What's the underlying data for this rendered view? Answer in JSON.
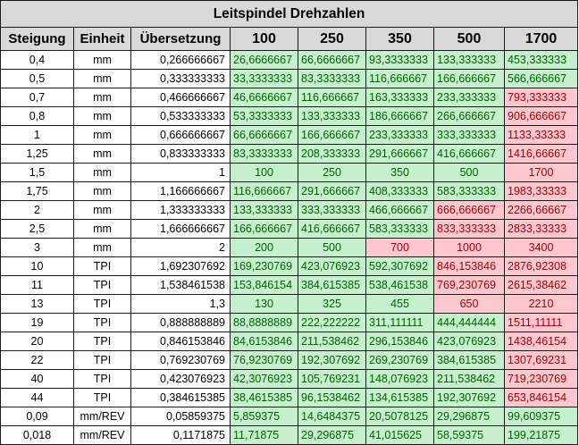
{
  "title": "Leitspindel Drehzahlen",
  "headers": {
    "steigung": "Steigung",
    "einheit": "Einheit",
    "uebersetzung": "Übersetzung",
    "speeds": [
      "100",
      "250",
      "350",
      "500",
      "1700"
    ]
  },
  "colors": {
    "ok_fill": "#c6efce",
    "ok_text": "#006100",
    "bad_fill": "#ffc7ce",
    "bad_text": "#9c0006",
    "header_fill": "#d9d9d9"
  },
  "rows": [
    {
      "steigung": "0,4",
      "einheit": "mm",
      "uebersetzung": "0,266666667",
      "values": [
        "26,6666667",
        "66,6666667",
        "93,3333333",
        "133,333333",
        "453,333333"
      ],
      "status": [
        "ok",
        "ok",
        "ok",
        "ok",
        "ok"
      ]
    },
    {
      "steigung": "0,5",
      "einheit": "mm",
      "uebersetzung": "0,333333333",
      "values": [
        "33,3333333",
        "83,3333333",
        "116,666667",
        "166,666667",
        "566,666667"
      ],
      "status": [
        "ok",
        "ok",
        "ok",
        "ok",
        "ok"
      ]
    },
    {
      "steigung": "0,7",
      "einheit": "mm",
      "uebersetzung": "0,466666667",
      "values": [
        "46,6666667",
        "116,666667",
        "163,333333",
        "233,333333",
        "793,333333"
      ],
      "status": [
        "ok",
        "ok",
        "ok",
        "ok",
        "bad"
      ]
    },
    {
      "steigung": "0,8",
      "einheit": "mm",
      "uebersetzung": "0,533333333",
      "values": [
        "53,3333333",
        "133,333333",
        "186,666667",
        "266,666667",
        "906,666667"
      ],
      "status": [
        "ok",
        "ok",
        "ok",
        "ok",
        "bad"
      ]
    },
    {
      "steigung": "1",
      "einheit": "mm",
      "uebersetzung": "0,666666667",
      "values": [
        "66,6666667",
        "166,666667",
        "233,333333",
        "333,333333",
        "1133,33333"
      ],
      "status": [
        "ok",
        "ok",
        "ok",
        "ok",
        "bad"
      ]
    },
    {
      "steigung": "1,25",
      "einheit": "mm",
      "uebersetzung": "0,833333333",
      "values": [
        "83,3333333",
        "208,333333",
        "291,666667",
        "416,666667",
        "1416,66667"
      ],
      "status": [
        "ok",
        "ok",
        "ok",
        "ok",
        "bad"
      ]
    },
    {
      "steigung": "1,5",
      "einheit": "mm",
      "uebersetzung": "1",
      "values": [
        "100",
        "250",
        "350",
        "500",
        "1700"
      ],
      "status": [
        "ok",
        "ok",
        "ok",
        "ok",
        "bad"
      ]
    },
    {
      "steigung": "1,75",
      "einheit": "mm",
      "uebersetzung": "1,166666667",
      "values": [
        "116,666667",
        "291,666667",
        "408,333333",
        "583,333333",
        "1983,33333"
      ],
      "status": [
        "ok",
        "ok",
        "ok",
        "ok",
        "bad"
      ]
    },
    {
      "steigung": "2",
      "einheit": "mm",
      "uebersetzung": "1,333333333",
      "values": [
        "133,333333",
        "333,333333",
        "466,666667",
        "666,666667",
        "2266,66667"
      ],
      "status": [
        "ok",
        "ok",
        "ok",
        "bad",
        "bad"
      ]
    },
    {
      "steigung": "2,5",
      "einheit": "mm",
      "uebersetzung": "1,666666667",
      "values": [
        "166,666667",
        "416,666667",
        "583,333333",
        "833,333333",
        "2833,33333"
      ],
      "status": [
        "ok",
        "ok",
        "ok",
        "bad",
        "bad"
      ]
    },
    {
      "steigung": "3",
      "einheit": "mm",
      "uebersetzung": "2",
      "values": [
        "200",
        "500",
        "700",
        "1000",
        "3400"
      ],
      "status": [
        "ok",
        "ok",
        "bad",
        "bad",
        "bad"
      ]
    },
    {
      "steigung": "10",
      "einheit": "TPI",
      "uebersetzung": "1,692307692",
      "values": [
        "169,230769",
        "423,076923",
        "592,307692",
        "846,153846",
        "2876,92308"
      ],
      "status": [
        "ok",
        "ok",
        "ok",
        "bad",
        "bad"
      ]
    },
    {
      "steigung": "11",
      "einheit": "TPI",
      "uebersetzung": "1,538461538",
      "values": [
        "153,846154",
        "384,615385",
        "538,461538",
        "769,230769",
        "2615,38462"
      ],
      "status": [
        "ok",
        "ok",
        "ok",
        "bad",
        "bad"
      ]
    },
    {
      "steigung": "13",
      "einheit": "TPI",
      "uebersetzung": "1,3",
      "values": [
        "130",
        "325",
        "455",
        "650",
        "2210"
      ],
      "status": [
        "ok",
        "ok",
        "ok",
        "bad",
        "bad"
      ]
    },
    {
      "steigung": "19",
      "einheit": "TPI",
      "uebersetzung": "0,888888889",
      "values": [
        "88,8888889",
        "222,222222",
        "311,111111",
        "444,444444",
        "1511,11111"
      ],
      "status": [
        "ok",
        "ok",
        "ok",
        "ok",
        "bad"
      ]
    },
    {
      "steigung": "20",
      "einheit": "TPI",
      "uebersetzung": "0,846153846",
      "values": [
        "84,6153846",
        "211,538462",
        "296,153846",
        "423,076923",
        "1438,46154"
      ],
      "status": [
        "ok",
        "ok",
        "ok",
        "ok",
        "bad"
      ]
    },
    {
      "steigung": "22",
      "einheit": "TPI",
      "uebersetzung": "0,769230769",
      "values": [
        "76,9230769",
        "192,307692",
        "269,230769",
        "384,615385",
        "1307,69231"
      ],
      "status": [
        "ok",
        "ok",
        "ok",
        "ok",
        "bad"
      ]
    },
    {
      "steigung": "40",
      "einheit": "TPI",
      "uebersetzung": "0,423076923",
      "values": [
        "42,3076923",
        "105,769231",
        "148,076923",
        "211,538462",
        "719,230769"
      ],
      "status": [
        "ok",
        "ok",
        "ok",
        "ok",
        "bad"
      ]
    },
    {
      "steigung": "44",
      "einheit": "TPI",
      "uebersetzung": "0,384615385",
      "values": [
        "38,4615385",
        "96,1538462",
        "134,615385",
        "192,307692",
        "653,846154"
      ],
      "status": [
        "ok",
        "ok",
        "ok",
        "ok",
        "bad"
      ]
    },
    {
      "steigung": "0,09",
      "einheit": "mm/REV",
      "uebersetzung": "0,05859375",
      "values": [
        "5,859375",
        "14,6484375",
        "20,5078125",
        "29,296875",
        "99,609375"
      ],
      "status": [
        "ok",
        "ok",
        "ok",
        "ok",
        "ok"
      ]
    },
    {
      "steigung": "0,018",
      "einheit": "mm/REV",
      "uebersetzung": "0,1171875",
      "values": [
        "11,71875",
        "29,296875",
        "41,015625",
        "58,59375",
        "199,21875"
      ],
      "status": [
        "ok",
        "ok",
        "ok",
        "ok",
        "ok"
      ]
    }
  ]
}
